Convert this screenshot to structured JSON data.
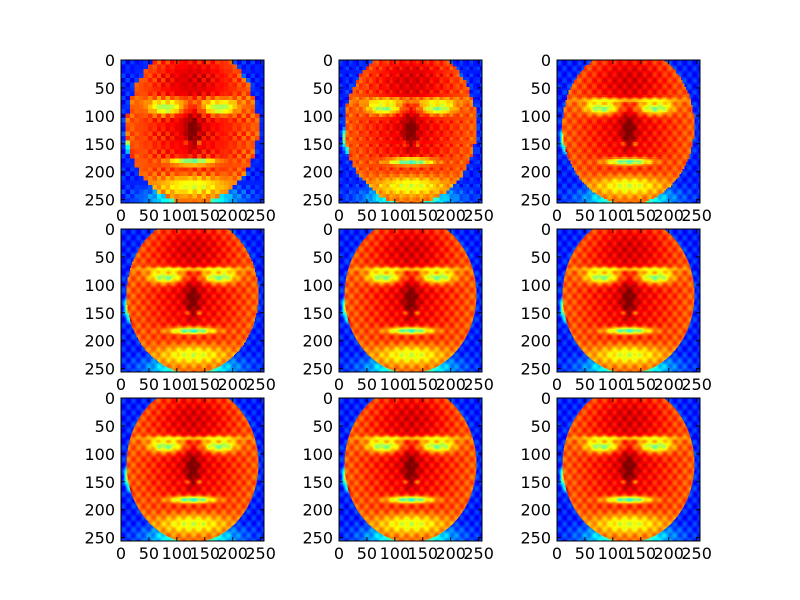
{
  "chart_data": {
    "type": "heatmap",
    "subplot_grid": {
      "rows": 3,
      "cols": 3
    },
    "colormap": "jet",
    "x_range": [
      0,
      256
    ],
    "y_range": [
      256,
      0
    ],
    "xticks": [
      "0",
      "50",
      "100",
      "150",
      "200",
      "250"
    ],
    "yticks": [
      "0",
      "50",
      "100",
      "150",
      "200",
      "250"
    ],
    "image_size": [
      256,
      256
    ],
    "pixelation_block_px": [
      8,
      6,
      3,
      2,
      1,
      1,
      1,
      1,
      1
    ],
    "content": "face-heatmap"
  }
}
